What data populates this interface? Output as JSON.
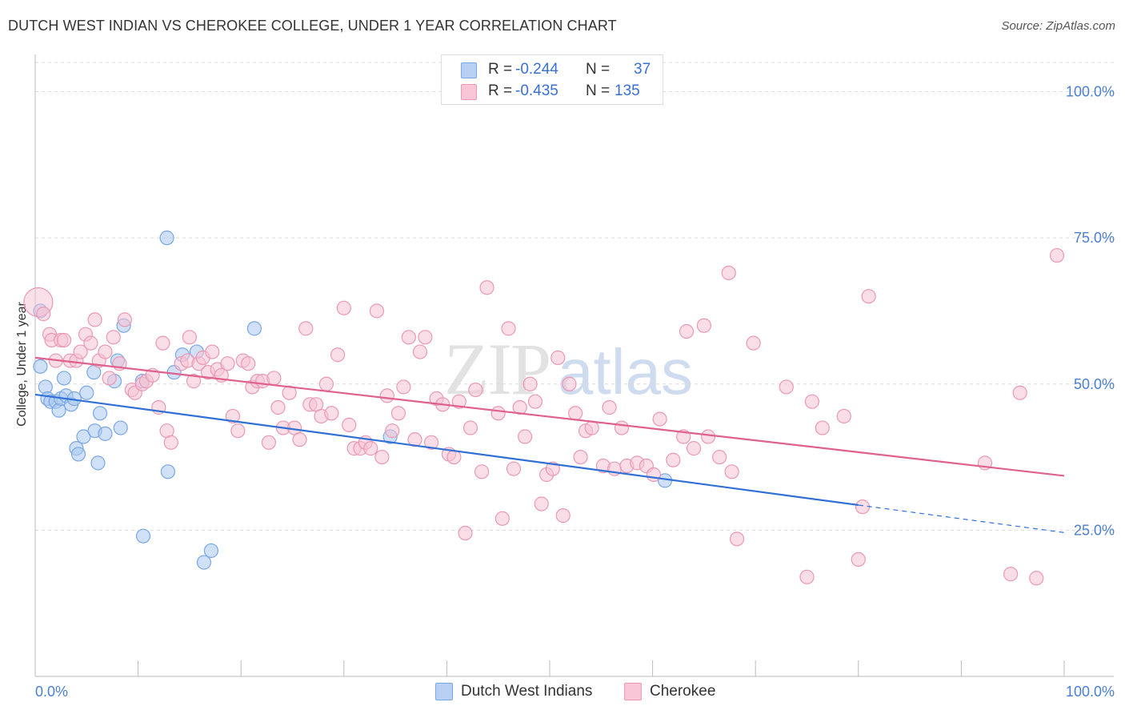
{
  "header": {
    "title": "DUTCH WEST INDIAN VS CHEROKEE COLLEGE, UNDER 1 YEAR CORRELATION CHART",
    "source": "Source: ZipAtlas.com"
  },
  "legend": {
    "r_label": "R =",
    "n_label": "N =",
    "rows": [
      {
        "r": "-0.244",
        "n": "37"
      },
      {
        "r": "-0.435",
        "n": "135"
      }
    ]
  },
  "bottom_legend": [
    "Dutch West Indians",
    "Cherokee"
  ],
  "watermark": "ZIPatlas",
  "chart_data": {
    "type": "scatter",
    "title": "DUTCH WEST INDIAN VS CHEROKEE COLLEGE, UNDER 1 YEAR CORRELATION CHART",
    "xlabel": "",
    "ylabel": "College, Under 1 year",
    "xlim": [
      0,
      100
    ],
    "ylim": [
      0,
      105
    ],
    "y_ticks": [
      {
        "value": 25,
        "label": "25.0%"
      },
      {
        "value": 50,
        "label": "50.0%"
      },
      {
        "value": 75,
        "label": "75.0%"
      },
      {
        "value": 100,
        "label": "100.0%"
      }
    ],
    "x_ticks": [
      {
        "value": 0,
        "label": "0.0%"
      },
      {
        "value": 100,
        "label": "100.0%"
      }
    ],
    "series": [
      {
        "name": "Dutch West Indians",
        "color": "#7aa7e6",
        "fill": "#aac8f0",
        "line_color": "#2f6fd6",
        "R": -0.244,
        "N": 37,
        "trend": {
          "x0": 0,
          "y0": 48.2,
          "x1": 80,
          "y1": 29.3,
          "dash_to_x": 100,
          "dash_to_y": 24.6
        },
        "points": [
          [
            0.5,
            62.5
          ],
          [
            0.5,
            53
          ],
          [
            1,
            49.5
          ],
          [
            1.2,
            47.5
          ],
          [
            1.5,
            47
          ],
          [
            2,
            47
          ],
          [
            2.3,
            45.5
          ],
          [
            2.5,
            47.5
          ],
          [
            2.8,
            51
          ],
          [
            3,
            48
          ],
          [
            3.5,
            46.5
          ],
          [
            3.8,
            47.5
          ],
          [
            4,
            39
          ],
          [
            4.2,
            38
          ],
          [
            4.7,
            41
          ],
          [
            5,
            48.5
          ],
          [
            5.7,
            52
          ],
          [
            5.8,
            42
          ],
          [
            6.1,
            36.5
          ],
          [
            6.3,
            45
          ],
          [
            6.8,
            41.5
          ],
          [
            7.7,
            50.5
          ],
          [
            8,
            54
          ],
          [
            8.3,
            42.5
          ],
          [
            8.6,
            60
          ],
          [
            10.4,
            50.5
          ],
          [
            10.5,
            24
          ],
          [
            12.8,
            75
          ],
          [
            12.9,
            35
          ],
          [
            13.5,
            52
          ],
          [
            14.3,
            55
          ],
          [
            15.7,
            55.5
          ],
          [
            16.4,
            19.5
          ],
          [
            17.1,
            21.5
          ],
          [
            21.3,
            59.5
          ],
          [
            34.5,
            41
          ],
          [
            61.2,
            33.5
          ]
        ]
      },
      {
        "name": "Cherokee",
        "color": "#eb98b3",
        "fill": "#f6c2d3",
        "line_color": "#e0608e",
        "R": -0.435,
        "N": 135,
        "trend": {
          "x0": 0,
          "y0": 54.5,
          "x1": 100,
          "y1": 34.3
        },
        "points": [
          [
            0.3,
            64
          ],
          [
            0.8,
            62
          ],
          [
            1.4,
            58.5
          ],
          [
            1.6,
            57.5
          ],
          [
            2,
            54
          ],
          [
            2.5,
            57.5
          ],
          [
            2.8,
            57.5
          ],
          [
            3.4,
            54
          ],
          [
            4,
            54
          ],
          [
            4.4,
            55.5
          ],
          [
            4.9,
            58.5
          ],
          [
            5.4,
            57
          ],
          [
            5.8,
            61
          ],
          [
            6.2,
            54
          ],
          [
            6.8,
            55.5
          ],
          [
            7.2,
            51
          ],
          [
            7.6,
            58
          ],
          [
            8.2,
            53.5
          ],
          [
            8.7,
            61
          ],
          [
            9.4,
            49
          ],
          [
            9.7,
            48.5
          ],
          [
            10.4,
            50
          ],
          [
            10.8,
            50.5
          ],
          [
            11.4,
            51.5
          ],
          [
            12.0,
            46
          ],
          [
            12.4,
            57
          ],
          [
            12.8,
            42
          ],
          [
            13.2,
            40
          ],
          [
            14.2,
            53.5
          ],
          [
            14.8,
            54
          ],
          [
            15.0,
            58
          ],
          [
            15.4,
            50.5
          ],
          [
            15.9,
            53.5
          ],
          [
            16.3,
            54.5
          ],
          [
            16.8,
            52
          ],
          [
            17.2,
            55.5
          ],
          [
            17.7,
            52.5
          ],
          [
            18.1,
            51.5
          ],
          [
            18.7,
            53.5
          ],
          [
            19.2,
            44.5
          ],
          [
            19.7,
            42
          ],
          [
            20.2,
            54
          ],
          [
            20.7,
            53.5
          ],
          [
            21.1,
            49.5
          ],
          [
            21.6,
            50.5
          ],
          [
            22.1,
            50.5
          ],
          [
            22.7,
            40
          ],
          [
            23.2,
            51
          ],
          [
            23.6,
            46
          ],
          [
            24.1,
            42.5
          ],
          [
            24.7,
            48.5
          ],
          [
            25.2,
            42.5
          ],
          [
            25.7,
            40.5
          ],
          [
            26.3,
            59.5
          ],
          [
            26.7,
            46.5
          ],
          [
            27.3,
            46.5
          ],
          [
            27.8,
            44.5
          ],
          [
            28.3,
            50
          ],
          [
            28.8,
            45
          ],
          [
            29.4,
            55
          ],
          [
            30.0,
            63
          ],
          [
            30.5,
            43
          ],
          [
            31.0,
            39
          ],
          [
            31.6,
            39
          ],
          [
            32.1,
            40
          ],
          [
            32.6,
            39
          ],
          [
            33.2,
            62.5
          ],
          [
            33.7,
            37.5
          ],
          [
            34.2,
            48
          ],
          [
            34.7,
            42
          ],
          [
            35.3,
            45
          ],
          [
            35.8,
            49.5
          ],
          [
            36.3,
            58
          ],
          [
            36.9,
            40.5
          ],
          [
            37.4,
            55.5
          ],
          [
            37.9,
            58
          ],
          [
            38.5,
            40
          ],
          [
            39.0,
            47.5
          ],
          [
            39.6,
            46.5
          ],
          [
            40.2,
            38
          ],
          [
            40.7,
            37.5
          ],
          [
            41.2,
            47
          ],
          [
            41.8,
            24.5
          ],
          [
            42.3,
            42.5
          ],
          [
            42.8,
            49
          ],
          [
            43.4,
            35
          ],
          [
            43.9,
            66.5
          ],
          [
            45.0,
            45
          ],
          [
            45.4,
            27
          ],
          [
            46.0,
            59.5
          ],
          [
            46.5,
            35.5
          ],
          [
            47.1,
            46
          ],
          [
            47.6,
            41
          ],
          [
            48.1,
            50
          ],
          [
            48.6,
            47
          ],
          [
            49.2,
            29.5
          ],
          [
            49.7,
            34.5
          ],
          [
            50.3,
            35.5
          ],
          [
            50.8,
            54.5
          ],
          [
            51.3,
            27.5
          ],
          [
            51.9,
            50
          ],
          [
            52.5,
            45
          ],
          [
            53.0,
            37.5
          ],
          [
            53.5,
            42
          ],
          [
            54.1,
            42.5
          ],
          [
            55.2,
            36
          ],
          [
            55.8,
            46
          ],
          [
            56.3,
            35.5
          ],
          [
            57.0,
            42.5
          ],
          [
            57.5,
            36
          ],
          [
            58.5,
            36.5
          ],
          [
            59.4,
            36
          ],
          [
            60.1,
            34.5
          ],
          [
            60.7,
            44
          ],
          [
            62.0,
            37
          ],
          [
            63.0,
            41
          ],
          [
            63.3,
            59
          ],
          [
            64.0,
            39
          ],
          [
            65.0,
            60
          ],
          [
            65.4,
            41
          ],
          [
            66.5,
            37.5
          ],
          [
            67.4,
            69
          ],
          [
            67.7,
            35
          ],
          [
            68.2,
            23.5
          ],
          [
            69.8,
            57
          ],
          [
            73.0,
            49.5
          ],
          [
            75.0,
            17
          ],
          [
            75.5,
            47
          ],
          [
            76.5,
            42.5
          ],
          [
            78.6,
            44.5
          ],
          [
            80.0,
            20
          ],
          [
            80.4,
            29
          ],
          [
            81.0,
            65
          ],
          [
            92.3,
            36.5
          ],
          [
            94.8,
            17.5
          ],
          [
            95.7,
            48.5
          ],
          [
            97.3,
            16.8
          ],
          [
            99.3,
            72
          ]
        ]
      }
    ]
  }
}
